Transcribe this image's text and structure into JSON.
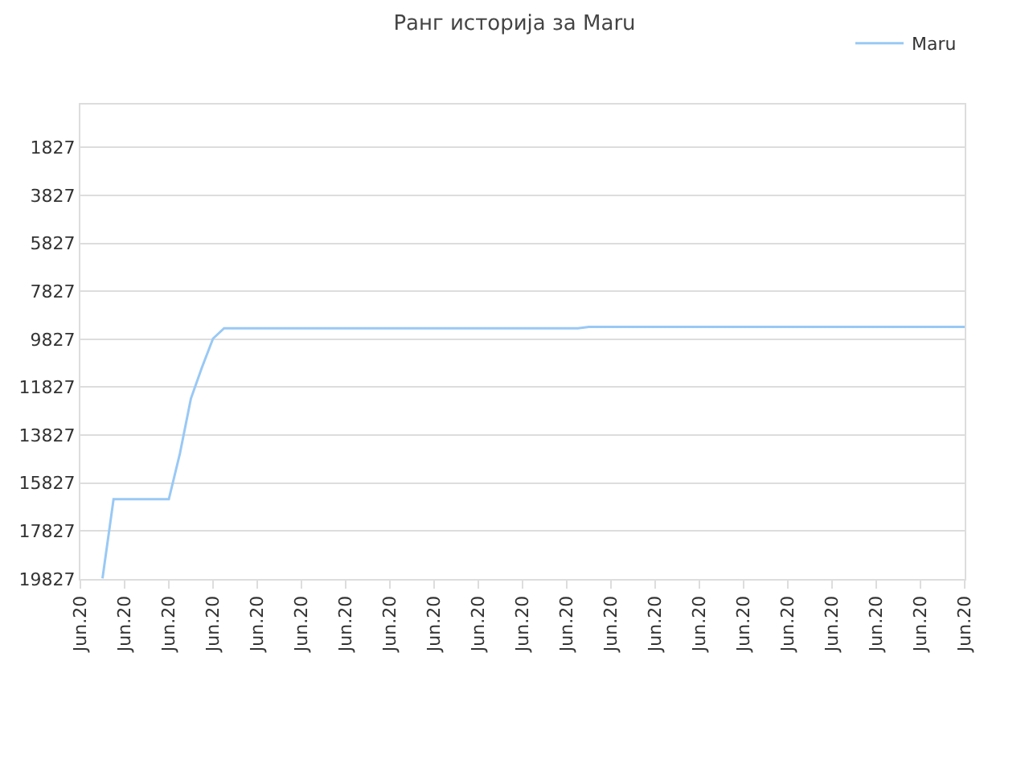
{
  "chart_data": {
    "type": "line",
    "title": "Ранг историја за Maru",
    "categories": [
      "Jun.20",
      null,
      null,
      null,
      "Jun.20",
      null,
      null,
      null,
      "Jun.20",
      null,
      null,
      null,
      "Jun.20",
      null,
      null,
      null,
      "Jun.20",
      null,
      null,
      null,
      "Jun.20",
      null,
      null,
      null,
      "Jun.20",
      null,
      null,
      null,
      "Jun.20",
      null,
      null,
      null,
      "Jun.20",
      null,
      null,
      null,
      "Jun.20",
      null,
      null,
      null,
      "Jun.20",
      null,
      null,
      null,
      "Jun.20",
      null,
      null,
      null,
      "Jun.20",
      null,
      null,
      null,
      "Jun.20",
      null,
      null,
      null,
      "Jun.20",
      null,
      null,
      null,
      "Jun.20",
      null,
      null,
      null,
      "Jun.20",
      null,
      null,
      null,
      "Jun.20",
      null,
      null,
      null,
      "Jun.20",
      null,
      null,
      null,
      "Jun.20",
      null,
      null,
      null,
      "Jun.20"
    ],
    "series": [
      {
        "name": "Maru",
        "color": "#99c9f5",
        "values": [
          null,
          null,
          19800,
          16500,
          16500,
          16500,
          16500,
          16500,
          16500,
          14600,
          12300,
          11000,
          9800,
          9370,
          9370,
          9370,
          9370,
          9370,
          9370,
          9370,
          9370,
          9370,
          9370,
          9370,
          9370,
          9370,
          9370,
          9370,
          9370,
          9370,
          9370,
          9370,
          9370,
          9370,
          9370,
          9370,
          9370,
          9370,
          9370,
          9370,
          9370,
          9370,
          9370,
          9370,
          9370,
          9370,
          9310,
          9310,
          9310,
          9310,
          9310,
          9310,
          9310,
          9310,
          9310,
          9310,
          9310,
          9310,
          9310,
          9310,
          9310,
          9310,
          9310,
          9310,
          9310,
          9310,
          9310,
          9310,
          9310,
          9310,
          9310,
          9310,
          9310,
          9310,
          9310,
          9310,
          9310,
          9310,
          9310,
          9310,
          9310
        ]
      }
    ],
    "ylim": [
      19827,
      40
    ],
    "yticks": [
      1827,
      3827,
      5827,
      7827,
      9827,
      11827,
      13827,
      15827,
      17827,
      19827
    ],
    "grid": "y",
    "legend": "top right",
    "marker": "none",
    "line_style": "solid"
  }
}
